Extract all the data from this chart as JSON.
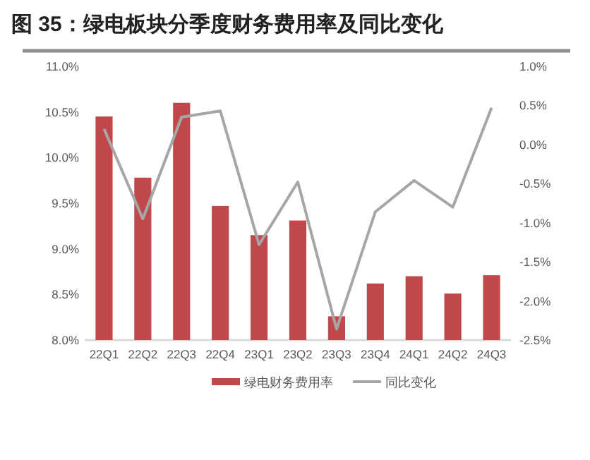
{
  "chart_data": {
    "type": "bar",
    "title": "图 35：绿电板块分季度财务费用率及同比变化",
    "categories": [
      "22Q1",
      "22Q2",
      "22Q3",
      "22Q4",
      "23Q1",
      "23Q2",
      "23Q3",
      "23Q4",
      "24Q1",
      "24Q2",
      "24Q3"
    ],
    "series": [
      {
        "name": "绿电财务费用率",
        "color": "#c0474a",
        "values": [
          10.45,
          9.78,
          10.6,
          9.47,
          9.15,
          9.31,
          8.26,
          8.62,
          8.7,
          8.51,
          8.71
        ]
      },
      {
        "name": "同比变化",
        "type": "line",
        "axis": "y2",
        "color": "#a6a6a6",
        "values": [
          0.2,
          -0.95,
          0.35,
          0.43,
          -1.28,
          -0.48,
          -2.36,
          -0.86,
          -0.46,
          -0.8,
          0.47
        ]
      }
    ],
    "ylim": [
      8.0,
      11.0
    ],
    "yticks": [
      {
        "value": 8.0,
        "label": "8.0%"
      },
      {
        "value": 8.5,
        "label": "8.5%"
      },
      {
        "value": 9.0,
        "label": "9.0%"
      },
      {
        "value": 9.5,
        "label": "9.5%"
      },
      {
        "value": 10.0,
        "label": "10.0%"
      },
      {
        "value": 10.5,
        "label": "10.5%"
      },
      {
        "value": 11.0,
        "label": "11.0%"
      }
    ],
    "y2lim": [
      -2.5,
      1.0
    ],
    "y2ticks": [
      {
        "value": -2.5,
        "label": "-2.5%"
      },
      {
        "value": -2.0,
        "label": "-2.0%"
      },
      {
        "value": -1.5,
        "label": "-1.5%"
      },
      {
        "value": -1.0,
        "label": "-1.0%"
      },
      {
        "value": -0.5,
        "label": "-0.5%"
      },
      {
        "value": 0.0,
        "label": "0.0%"
      },
      {
        "value": 0.5,
        "label": "0.5%"
      },
      {
        "value": 1.0,
        "label": "1.0%"
      }
    ],
    "grid": false,
    "legend": "bottom",
    "marker": "none",
    "line_style": "solid"
  }
}
